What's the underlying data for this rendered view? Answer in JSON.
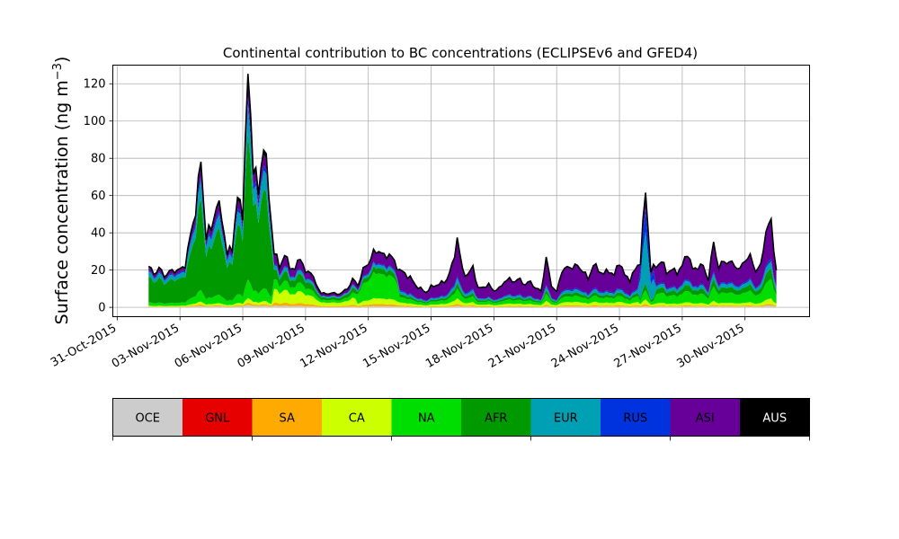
{
  "chart_data": {
    "type": "area",
    "title": "Continental contribution to BC concentrations (ECLIPSEv6 and GFED4)",
    "ylabel": "Surface concentration (ng m",
    "ylabel_sup": "−3",
    "ylabel_close": ")",
    "ylim": [
      -5,
      130
    ],
    "yticks": [
      0,
      20,
      40,
      60,
      80,
      100,
      120
    ],
    "xlim_days": [
      "2015-10-30T19:00",
      "2015-12-03T02:00"
    ],
    "xticks": [
      "31-Oct-2015",
      "03-Nov-2015",
      "06-Nov-2015",
      "09-Nov-2015",
      "12-Nov-2015",
      "15-Nov-2015",
      "18-Nov-2015",
      "21-Nov-2015",
      "24-Nov-2015",
      "27-Nov-2015",
      "30-Nov-2015"
    ],
    "xtick_dates": [
      "2015-10-31",
      "2015-11-03",
      "2015-11-06",
      "2015-11-09",
      "2015-11-12",
      "2015-11-15",
      "2015-11-18",
      "2015-11-21",
      "2015-11-24",
      "2015-11-27",
      "2015-11-30"
    ],
    "grid": true,
    "stack_order": [
      "OCE",
      "GNL",
      "SA",
      "CA",
      "NA",
      "AFR",
      "EUR",
      "RUS",
      "ASI",
      "AUS"
    ],
    "total_outline_color": "#000000",
    "series": [
      {
        "name": "OCE",
        "color": "#cccccc"
      },
      {
        "name": "GNL",
        "color": "#e60000"
      },
      {
        "name": "SA",
        "color": "#ffaa00"
      },
      {
        "name": "CA",
        "color": "#ccff00"
      },
      {
        "name": "NA",
        "color": "#00dd00"
      },
      {
        "name": "AFR",
        "color": "#009900"
      },
      {
        "name": "EUR",
        "color": "#00a0b4"
      },
      {
        "name": "RUS",
        "color": "#0033dd"
      },
      {
        "name": "ASI",
        "color": "#660099"
      },
      {
        "name": "AUS",
        "color": "#000000"
      }
    ],
    "start": "2015-11-01T12:00",
    "end": "2015-12-01T12:00",
    "total_keypoints": [
      [
        "2015-11-01T12:00",
        22
      ],
      [
        "2015-11-01T18:00",
        18
      ],
      [
        "2015-11-02T00:00",
        21
      ],
      [
        "2015-11-02T06:00",
        17
      ],
      [
        "2015-11-02T12:00",
        19
      ],
      [
        "2015-11-02T18:00",
        20
      ],
      [
        "2015-11-03T00:00",
        20
      ],
      [
        "2015-11-03T06:00",
        23
      ],
      [
        "2015-11-03T12:00",
        38
      ],
      [
        "2015-11-03T18:00",
        53
      ],
      [
        "2015-11-04T00:00",
        78
      ],
      [
        "2015-11-04T06:00",
        38
      ],
      [
        "2015-11-04T12:00",
        43
      ],
      [
        "2015-11-04T18:00",
        55
      ],
      [
        "2015-11-05T00:00",
        50
      ],
      [
        "2015-11-05T06:00",
        28
      ],
      [
        "2015-11-05T12:00",
        33
      ],
      [
        "2015-11-05T18:00",
        58
      ],
      [
        "2015-11-06T00:00",
        52
      ],
      [
        "2015-11-06T06:00",
        123
      ],
      [
        "2015-11-06T12:00",
        80
      ],
      [
        "2015-11-06T18:00",
        60
      ],
      [
        "2015-11-07T00:00",
        91
      ],
      [
        "2015-11-07T06:00",
        60
      ],
      [
        "2015-11-07T12:00",
        30
      ],
      [
        "2015-11-07T18:00",
        22
      ],
      [
        "2015-11-08T00:00",
        28
      ],
      [
        "2015-11-08T06:00",
        22
      ],
      [
        "2015-11-08T12:00",
        20
      ],
      [
        "2015-11-08T18:00",
        28
      ],
      [
        "2015-11-09T00:00",
        18
      ],
      [
        "2015-11-09T06:00",
        20
      ],
      [
        "2015-11-09T12:00",
        12
      ],
      [
        "2015-11-09T18:00",
        8
      ],
      [
        "2015-11-10T00:00",
        7
      ],
      [
        "2015-11-10T06:00",
        8
      ],
      [
        "2015-11-10T12:00",
        7
      ],
      [
        "2015-11-10T18:00",
        8
      ],
      [
        "2015-11-11T00:00",
        10
      ],
      [
        "2015-11-11T06:00",
        15
      ],
      [
        "2015-11-11T12:00",
        12
      ],
      [
        "2015-11-11T18:00",
        20
      ],
      [
        "2015-11-12T00:00",
        24
      ],
      [
        "2015-11-12T06:00",
        29
      ],
      [
        "2015-11-12T12:00",
        31
      ],
      [
        "2015-11-12T18:00",
        27
      ],
      [
        "2015-11-13T00:00",
        29
      ],
      [
        "2015-11-13T06:00",
        24
      ],
      [
        "2015-11-13T12:00",
        20
      ],
      [
        "2015-11-13T18:00",
        18
      ],
      [
        "2015-11-14T00:00",
        16
      ],
      [
        "2015-11-14T06:00",
        12
      ],
      [
        "2015-11-14T12:00",
        10
      ],
      [
        "2015-11-14T18:00",
        8
      ],
      [
        "2015-11-15T00:00",
        11
      ],
      [
        "2015-11-15T06:00",
        12
      ],
      [
        "2015-11-15T12:00",
        13
      ],
      [
        "2015-11-15T18:00",
        15
      ],
      [
        "2015-11-16T00:00",
        22
      ],
      [
        "2015-11-16T06:00",
        37
      ],
      [
        "2015-11-16T12:00",
        20
      ],
      [
        "2015-11-16T18:00",
        17
      ],
      [
        "2015-11-17T00:00",
        22
      ],
      [
        "2015-11-17T06:00",
        10
      ],
      [
        "2015-11-17T12:00",
        11
      ],
      [
        "2015-11-17T18:00",
        12
      ],
      [
        "2015-11-18T00:00",
        9
      ],
      [
        "2015-11-18T06:00",
        10
      ],
      [
        "2015-11-18T12:00",
        14
      ],
      [
        "2015-11-18T18:00",
        15
      ],
      [
        "2015-11-19T00:00",
        14
      ],
      [
        "2015-11-19T06:00",
        15
      ],
      [
        "2015-11-19T12:00",
        12
      ],
      [
        "2015-11-19T18:00",
        14
      ],
      [
        "2015-11-20T00:00",
        10
      ],
      [
        "2015-11-20T06:00",
        9
      ],
      [
        "2015-11-20T12:00",
        26
      ],
      [
        "2015-11-20T18:00",
        12
      ],
      [
        "2015-11-21T00:00",
        8
      ],
      [
        "2015-11-21T06:00",
        20
      ],
      [
        "2015-11-21T12:00",
        21
      ],
      [
        "2015-11-21T18:00",
        22
      ],
      [
        "2015-11-22T00:00",
        22
      ],
      [
        "2015-11-22T06:00",
        20
      ],
      [
        "2015-11-22T12:00",
        15
      ],
      [
        "2015-11-22T18:00",
        23
      ],
      [
        "2015-11-23T00:00",
        20
      ],
      [
        "2015-11-23T06:00",
        18
      ],
      [
        "2015-11-23T12:00",
        20
      ],
      [
        "2015-11-23T18:00",
        17
      ],
      [
        "2015-11-24T00:00",
        25
      ],
      [
        "2015-11-24T06:00",
        17
      ],
      [
        "2015-11-24T12:00",
        15
      ],
      [
        "2015-11-24T18:00",
        20
      ],
      [
        "2015-11-25T00:00",
        25
      ],
      [
        "2015-11-25T06:00",
        62
      ],
      [
        "2015-11-25T12:00",
        20
      ],
      [
        "2015-11-25T18:00",
        22
      ],
      [
        "2015-11-26T00:00",
        25
      ],
      [
        "2015-11-26T06:00",
        19
      ],
      [
        "2015-11-26T12:00",
        20
      ],
      [
        "2015-11-26T18:00",
        19
      ],
      [
        "2015-11-27T00:00",
        22
      ],
      [
        "2015-11-27T06:00",
        30
      ],
      [
        "2015-11-27T12:00",
        20
      ],
      [
        "2015-11-27T18:00",
        22
      ],
      [
        "2015-11-28T00:00",
        22
      ],
      [
        "2015-11-28T06:00",
        15
      ],
      [
        "2015-11-28T12:00",
        35
      ],
      [
        "2015-11-28T18:00",
        21
      ],
      [
        "2015-11-29T00:00",
        25
      ],
      [
        "2015-11-29T06:00",
        24
      ],
      [
        "2015-11-29T12:00",
        23
      ],
      [
        "2015-11-29T18:00",
        20
      ],
      [
        "2015-11-30T00:00",
        26
      ],
      [
        "2015-11-30T06:00",
        27
      ],
      [
        "2015-11-30T12:00",
        20
      ],
      [
        "2015-11-30T18:00",
        22
      ],
      [
        "2015-12-01T00:00",
        42
      ],
      [
        "2015-12-01T06:00",
        45
      ],
      [
        "2015-12-01T12:00",
        20
      ]
    ]
  },
  "colorbar": {
    "labels": [
      "OCE",
      "GNL",
      "SA",
      "CA",
      "NA",
      "AFR",
      "EUR",
      "RUS",
      "ASI",
      "AUS"
    ]
  }
}
